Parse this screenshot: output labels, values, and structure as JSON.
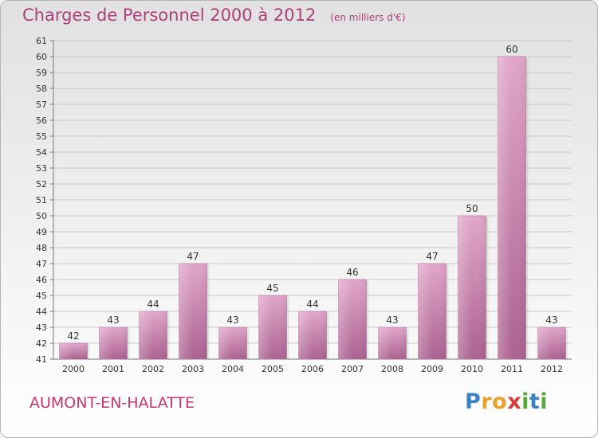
{
  "chart_data": {
    "type": "bar",
    "title": "Charges de Personnel 2000 à 2012",
    "subtitle": "(en milliers d'€)",
    "categories": [
      "2000",
      "2001",
      "2002",
      "2003",
      "2004",
      "2005",
      "2006",
      "2007",
      "2008",
      "2009",
      "2010",
      "2011",
      "2012"
    ],
    "values": [
      42,
      43,
      44,
      47,
      43,
      45,
      44,
      46,
      43,
      47,
      50,
      60,
      43
    ],
    "ylim": [
      41,
      61
    ],
    "yticks": [
      41,
      42,
      43,
      44,
      45,
      46,
      47,
      48,
      49,
      50,
      51,
      52,
      53,
      54,
      55,
      56,
      57,
      58,
      59,
      60,
      61
    ],
    "grid": true,
    "bar_color": "#c56a9c"
  },
  "commune": "AUMONT-EN-HALATTE",
  "logo": {
    "letters": [
      {
        "ch": "P",
        "color": "#3b82c4"
      },
      {
        "ch": "r",
        "color": "#e8a02a"
      },
      {
        "ch": "o",
        "color": "#e8a02a"
      },
      {
        "ch": "x",
        "color": "#d63a3a"
      },
      {
        "ch": "i",
        "color": "#5aa83a"
      },
      {
        "ch": "t",
        "color": "#3b82c4"
      },
      {
        "ch": "i",
        "color": "#5aa83a"
      }
    ]
  }
}
